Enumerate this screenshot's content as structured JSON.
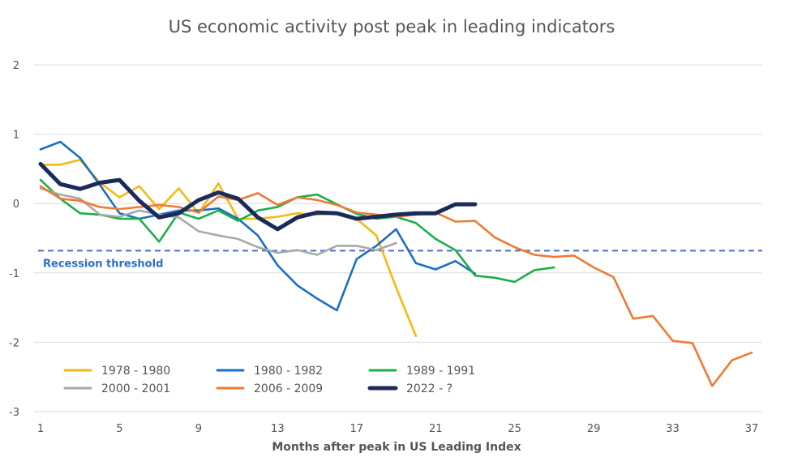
{
  "chart_data": {
    "type": "line",
    "title": "US economic activity post peak in leading indicators",
    "xlabel": "Months after peak in US Leading Index",
    "ylabel": "",
    "xlim": [
      1,
      37
    ],
    "ylim": [
      -3,
      2
    ],
    "x_ticks": [
      1,
      5,
      9,
      13,
      17,
      21,
      25,
      29,
      33,
      37
    ],
    "y_ticks": [
      2,
      1,
      0,
      -1,
      -2,
      -3
    ],
    "grid": "horizontal",
    "legend_position": "bottom-left",
    "threshold": {
      "label": "Recession threshold",
      "value": -0.68,
      "color": "#4a6cc4"
    },
    "series": [
      {
        "name": "1978 - 1980",
        "color": "#f5b90f",
        "emphasis": false,
        "values": [
          0.56,
          0.56,
          0.63,
          0.3,
          0.09,
          0.25,
          -0.08,
          0.22,
          -0.14,
          0.29,
          -0.22,
          -0.22,
          -0.19,
          -0.14,
          -0.16,
          -0.14,
          -0.22,
          -0.46,
          -1.21,
          -1.91
        ]
      },
      {
        "name": "1980 - 1982",
        "color": "#1a6fc4",
        "emphasis": false,
        "values": [
          0.78,
          0.89,
          0.66,
          0.27,
          -0.14,
          -0.22,
          -0.16,
          -0.1,
          -0.1,
          -0.07,
          -0.22,
          -0.46,
          -0.89,
          -1.18,
          -1.37,
          -1.54,
          -0.8,
          -0.61,
          -0.37,
          -0.86,
          -0.95,
          -0.83,
          -1.01
        ]
      },
      {
        "name": "1989 - 1991",
        "color": "#1cae4a",
        "emphasis": false,
        "values": [
          0.34,
          0.07,
          -0.14,
          -0.16,
          -0.22,
          -0.22,
          -0.55,
          -0.13,
          -0.22,
          -0.1,
          -0.25,
          -0.1,
          -0.05,
          0.09,
          0.13,
          -0.01,
          -0.15,
          -0.22,
          -0.19,
          -0.28,
          -0.51,
          -0.67,
          -1.04,
          -1.07,
          -1.13,
          -0.96,
          -0.92
        ]
      },
      {
        "name": "2000 - 2001",
        "color": "#a8a8a8",
        "emphasis": false,
        "values": [
          0.22,
          0.13,
          0.07,
          -0.16,
          -0.19,
          -0.1,
          -0.16,
          -0.2,
          -0.4,
          -0.46,
          -0.51,
          -0.63,
          -0.71,
          -0.67,
          -0.74,
          -0.61,
          -0.61,
          -0.67,
          -0.57
        ]
      },
      {
        "name": "2006 - 2009",
        "color": "#f07a32",
        "emphasis": false,
        "values": [
          0.25,
          0.07,
          0.04,
          -0.05,
          -0.08,
          -0.05,
          -0.02,
          -0.05,
          -0.13,
          0.1,
          0.05,
          0.15,
          -0.02,
          0.09,
          0.05,
          -0.02,
          -0.13,
          -0.16,
          -0.19,
          -0.16,
          -0.13,
          -0.26,
          -0.25,
          -0.49,
          -0.63,
          -0.74,
          -0.77,
          -0.75,
          -0.92,
          -1.06,
          -1.66,
          -1.62,
          -1.98,
          -2.01,
          -2.63,
          -2.26,
          -2.15
        ]
      },
      {
        "name": "2022 - ?",
        "color": "#1b2a5c",
        "emphasis": true,
        "values": [
          0.57,
          0.28,
          0.21,
          0.3,
          0.34,
          0.04,
          -0.2,
          -0.14,
          0.05,
          0.16,
          0.07,
          -0.2,
          -0.37,
          -0.2,
          -0.13,
          -0.14,
          -0.22,
          -0.19,
          -0.16,
          -0.14,
          -0.14,
          -0.01,
          -0.01
        ]
      }
    ],
    "colors": {
      "grid": "#dcdcdc",
      "text": "#555555",
      "background": "#ffffff"
    }
  }
}
